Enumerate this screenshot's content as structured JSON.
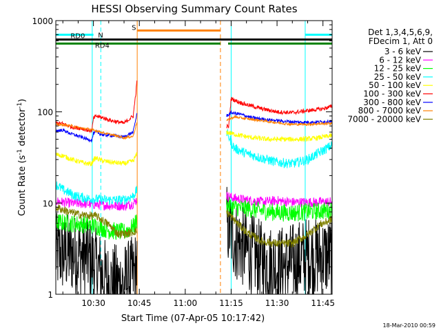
{
  "chart_data": {
    "type": "line",
    "title": "HESSI Observing Summary Count Rates",
    "xlabel": "Start Time (07-Apr-05 10:17:42)",
    "ylabel_main": "Count Rate (s",
    "ylabel_sup1": "-1",
    "ylabel_mid": " detector",
    "ylabel_sup2": "-1",
    "ylabel_end": ")",
    "yscale": "log",
    "ylim": [
      1,
      1000
    ],
    "xlim_minutes": [
      17.7,
      108.0
    ],
    "x_ticks": [
      {
        "label": "10:30",
        "value": 30
      },
      {
        "label": "10:45",
        "value": 45
      },
      {
        "label": "11:00",
        "value": 60
      },
      {
        "label": "11:15",
        "value": 75
      },
      {
        "label": "11:30",
        "value": 90
      },
      {
        "label": "11:45",
        "value": 105
      }
    ],
    "y_ticks": [
      {
        "label": "1",
        "value": 1
      },
      {
        "label": "10",
        "value": 10
      },
      {
        "label": "100",
        "value": 100
      },
      {
        "label": "1000",
        "value": 1000
      }
    ],
    "legend_header": [
      "Det 1,3,4,5,6,9,",
      "FDecim 1, Att 0"
    ],
    "legend_placement": "right",
    "footer_date": "18-Mar-2010 00:59",
    "gap_minutes": [
      44.5,
      73.5
    ],
    "series": [
      {
        "name": "3 - 6 keV",
        "color": "#000000",
        "noise": 0.9,
        "pre": [
          [
            17.7,
            2.8
          ],
          [
            22,
            2.8
          ],
          [
            28,
            2.6
          ],
          [
            31,
            2.0
          ],
          [
            35,
            1.3
          ],
          [
            40,
            1.3
          ],
          [
            43,
            1.6
          ],
          [
            44.3,
            2.0
          ]
        ],
        "post": [
          [
            73.5,
            6
          ],
          [
            76,
            4
          ],
          [
            80,
            3
          ],
          [
            85,
            2.3
          ],
          [
            90,
            2.0
          ],
          [
            95,
            2.2
          ],
          [
            100,
            2.6
          ],
          [
            108,
            2.6
          ]
        ]
      },
      {
        "name": "6 - 12 keV",
        "color": "#ff00ff",
        "noise": 0.12,
        "pre": [
          [
            17.7,
            10.5
          ],
          [
            22,
            10
          ],
          [
            28,
            9.8
          ],
          [
            31,
            9.6
          ],
          [
            35,
            9.4
          ],
          [
            40,
            9.3
          ],
          [
            43,
            9.8
          ],
          [
            44.3,
            11
          ]
        ],
        "post": [
          [
            73.5,
            12
          ],
          [
            76,
            11.3
          ],
          [
            80,
            10.8
          ],
          [
            85,
            10.3
          ],
          [
            90,
            10.6
          ],
          [
            95,
            10.2
          ],
          [
            100,
            10.2
          ],
          [
            108,
            10.3
          ]
        ]
      },
      {
        "name": "12 - 25 keV",
        "color": "#00ff00",
        "noise": 0.22,
        "pre": [
          [
            17.7,
            6.2
          ],
          [
            22,
            6.0
          ],
          [
            28,
            5.8
          ],
          [
            31,
            5.6
          ],
          [
            35,
            5.0
          ],
          [
            40,
            4.8
          ],
          [
            43,
            5.5
          ],
          [
            44.3,
            6.5
          ]
        ],
        "post": [
          [
            73.5,
            9.5
          ],
          [
            76,
            9.0
          ],
          [
            80,
            8.7
          ],
          [
            85,
            8.2
          ],
          [
            90,
            7.9
          ],
          [
            95,
            7.8
          ],
          [
            100,
            8.0
          ],
          [
            108,
            8.3
          ]
        ]
      },
      {
        "name": "25 - 50 keV",
        "color": "#00ffff",
        "noise": 0.12,
        "pre": [
          [
            17.7,
            16
          ],
          [
            20,
            14
          ],
          [
            24,
            12
          ],
          [
            28,
            11.2
          ],
          [
            31,
            11
          ],
          [
            35,
            10.8
          ],
          [
            40,
            10.8
          ],
          [
            43,
            12
          ],
          [
            44.3,
            14
          ]
        ],
        "post": [
          [
            73.5,
            60
          ],
          [
            76,
            40
          ],
          [
            80,
            35
          ],
          [
            85,
            31
          ],
          [
            90,
            28
          ],
          [
            95,
            27
          ],
          [
            100,
            30
          ],
          [
            104,
            36
          ],
          [
            108,
            43
          ]
        ]
      },
      {
        "name": "50 - 100 keV",
        "color": "#ffff00",
        "noise": 0.06,
        "pre": [
          [
            17.7,
            34
          ],
          [
            20,
            33
          ],
          [
            23,
            30
          ],
          [
            26,
            28
          ],
          [
            28,
            27
          ],
          [
            29.5,
            27
          ],
          [
            30,
            30
          ],
          [
            31,
            31
          ],
          [
            33,
            29
          ],
          [
            36,
            28
          ],
          [
            40,
            27
          ],
          [
            43,
            29
          ],
          [
            44.3,
            35
          ]
        ],
        "post": [
          [
            73.5,
            60
          ],
          [
            75,
            58
          ],
          [
            78,
            55
          ],
          [
            82,
            52
          ],
          [
            87,
            50
          ],
          [
            92,
            50
          ],
          [
            97,
            50
          ],
          [
            102,
            51
          ],
          [
            108,
            55
          ]
        ]
      },
      {
        "name": "100 - 300 keV",
        "color": "#ff0000",
        "noise": 0.05,
        "pre": [
          [
            17.7,
            75
          ],
          [
            20,
            74
          ],
          [
            23,
            68
          ],
          [
            26,
            66
          ],
          [
            28,
            63
          ],
          [
            29.5,
            62
          ],
          [
            30,
            85
          ],
          [
            31,
            90
          ],
          [
            33,
            86
          ],
          [
            36,
            80
          ],
          [
            40,
            75
          ],
          [
            43,
            90
          ],
          [
            44.0,
            180
          ],
          [
            44.3,
            230
          ]
        ],
        "post": [
          [
            73.5,
            70
          ],
          [
            74.2,
            68
          ],
          [
            75,
            140
          ],
          [
            77,
            130
          ],
          [
            80,
            120
          ],
          [
            85,
            108
          ],
          [
            90,
            100
          ],
          [
            95,
            98
          ],
          [
            100,
            103
          ],
          [
            105,
            108
          ],
          [
            108,
            115
          ]
        ]
      },
      {
        "name": "300 - 800 keV",
        "color": "#0000ff",
        "noise": 0.04,
        "pre": [
          [
            17.7,
            62
          ],
          [
            20,
            63
          ],
          [
            23,
            57
          ],
          [
            26,
            53
          ],
          [
            28,
            50
          ],
          [
            29.5,
            49
          ],
          [
            30,
            58
          ],
          [
            31,
            60
          ],
          [
            33,
            56
          ],
          [
            36,
            55
          ],
          [
            40,
            53
          ],
          [
            43,
            60
          ],
          [
            44.3,
            100
          ]
        ],
        "post": [
          [
            73.5,
            90
          ],
          [
            75,
            98
          ],
          [
            78,
            94
          ],
          [
            82,
            86
          ],
          [
            87,
            82
          ],
          [
            92,
            79
          ],
          [
            97,
            77
          ],
          [
            102,
            77
          ],
          [
            108,
            79
          ]
        ]
      },
      {
        "name": "800 - 7000 keV",
        "color": "#ff8000",
        "noise": 0.03,
        "pre": [
          [
            17.7,
            72
          ],
          [
            20,
            72
          ],
          [
            23,
            70
          ],
          [
            26,
            66
          ],
          [
            28,
            65
          ],
          [
            31,
            62
          ],
          [
            34,
            58
          ],
          [
            37,
            55
          ],
          [
            40,
            52
          ],
          [
            43,
            54
          ],
          [
            44.3,
            80
          ]
        ],
        "post": [
          [
            73.5,
            80
          ],
          [
            76,
            88
          ],
          [
            80,
            84
          ],
          [
            85,
            80
          ],
          [
            90,
            76
          ],
          [
            95,
            73
          ],
          [
            100,
            73
          ],
          [
            108,
            75
          ]
        ]
      },
      {
        "name": "7000 - 20000 keV",
        "color": "#808000",
        "noise": 0.1,
        "pre": [
          [
            17.7,
            9
          ],
          [
            22,
            8
          ],
          [
            26,
            7.4
          ],
          [
            31,
            7.2
          ],
          [
            35,
            5.8
          ],
          [
            38,
            4.6
          ],
          [
            41,
            4.6
          ],
          [
            44.3,
            5
          ]
        ],
        "post": [
          [
            73.5,
            8
          ],
          [
            76,
            6.5
          ],
          [
            80,
            4.8
          ],
          [
            85,
            3.8
          ],
          [
            90,
            3.6
          ],
          [
            95,
            3.6
          ],
          [
            100,
            4.5
          ],
          [
            104,
            5.8
          ],
          [
            108,
            6.6
          ]
        ]
      }
    ],
    "overlays": {
      "N": {
        "label": "N",
        "color": "#00ffff",
        "segments": [
          [
            17.7,
            30.0
          ],
          [
            99.2,
            108.0
          ]
        ],
        "level": 700
      },
      "S": {
        "label": "S",
        "color": "#ff8000",
        "segments": [
          [
            44.4,
            71.5
          ]
        ],
        "level": 780
      },
      "RD0": {
        "label": "RD0",
        "color": "#000000",
        "segments": [
          [
            17.7,
            108.0
          ]
        ],
        "level": 620
      },
      "RD4": {
        "label": "RD4",
        "color": "#008000",
        "segments": [
          [
            17.7,
            71.5
          ],
          [
            74.0,
            108.0
          ]
        ],
        "level": 560
      }
    },
    "vlines": [
      {
        "x": 17.7,
        "color": "#00ffff",
        "dash": false
      },
      {
        "x": 29.6,
        "color": "#00ffff",
        "dash": false
      },
      {
        "x": 32.4,
        "color": "#00ffff",
        "dash": true
      },
      {
        "x": 44.3,
        "color": "#ff8000",
        "dash": false
      },
      {
        "x": 71.5,
        "color": "#ff8000",
        "dash": true
      },
      {
        "x": 75.0,
        "color": "#00ffff",
        "dash": false
      },
      {
        "x": 99.2,
        "color": "#00ffff",
        "dash": false
      },
      {
        "x": 108.0,
        "color": "#00ffff",
        "dash": true
      }
    ]
  }
}
